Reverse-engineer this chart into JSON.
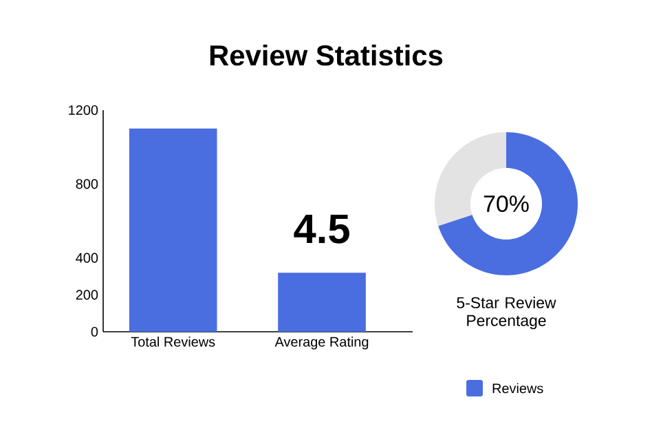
{
  "chart_data": [
    {
      "type": "bar",
      "title": "Review Statistics",
      "categories": [
        "Total Reviews",
        "Average Rating"
      ],
      "series": [
        {
          "name": "Reviews",
          "color": "#4a6ee0",
          "values": [
            1100,
            320
          ]
        }
      ],
      "ylim": [
        0,
        1200
      ],
      "yticks": [
        0,
        200,
        400,
        800,
        1200
      ],
      "legend": "bottom right",
      "annotations": [
        "4.5"
      ]
    },
    {
      "type": "donut",
      "title": "5-Star Review Percentage",
      "categories": [
        null,
        null
      ],
      "values": [
        70,
        30
      ],
      "colors": [
        "#4a6ee0",
        "#e3e3e3"
      ],
      "value_labels": [
        "70%",
        null
      ]
    }
  ]
}
